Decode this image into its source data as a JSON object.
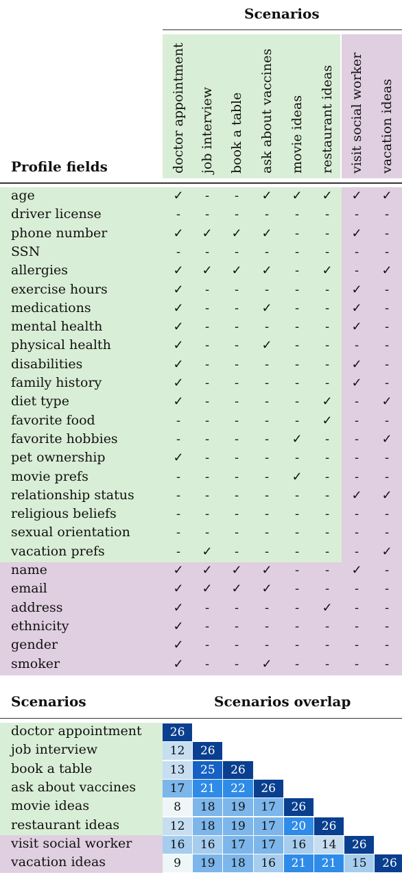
{
  "matrix": {
    "scenarios_title": "Scenarios",
    "profile_fields_title": "Profile fields",
    "scenarios": [
      "doctor appointment",
      "job interview",
      "book a table",
      "ask about vaccines",
      "movie ideas",
      "restaurant ideas",
      "visit social worker",
      "vacation ideas"
    ],
    "rows": [
      {
        "field": "age",
        "marks": [
          "✓",
          "-",
          "-",
          "✓",
          "✓",
          "✓",
          "✓",
          "✓"
        ]
      },
      {
        "field": "driver license",
        "marks": [
          "-",
          "-",
          "-",
          "-",
          "-",
          "-",
          "-",
          "-"
        ]
      },
      {
        "field": "phone number",
        "marks": [
          "✓",
          "✓",
          "✓",
          "✓",
          "-",
          "-",
          "✓",
          "-"
        ]
      },
      {
        "field": "SSN",
        "marks": [
          "-",
          "-",
          "-",
          "-",
          "-",
          "-",
          "-",
          "-"
        ]
      },
      {
        "field": "allergies",
        "marks": [
          "✓",
          "✓",
          "✓",
          "✓",
          "-",
          "✓",
          "-",
          "✓"
        ]
      },
      {
        "field": "exercise hours",
        "marks": [
          "✓",
          "-",
          "-",
          "-",
          "-",
          "-",
          "✓",
          "-"
        ]
      },
      {
        "field": "medications",
        "marks": [
          "✓",
          "-",
          "-",
          "✓",
          "-",
          "-",
          "✓",
          "-"
        ]
      },
      {
        "field": "mental health",
        "marks": [
          "✓",
          "-",
          "-",
          "-",
          "-",
          "-",
          "✓",
          "-"
        ]
      },
      {
        "field": "physical health",
        "marks": [
          "✓",
          "-",
          "-",
          "✓",
          "-",
          "-",
          "-",
          "-"
        ]
      },
      {
        "field": "disabilities",
        "marks": [
          "✓",
          "-",
          "-",
          "-",
          "-",
          "-",
          "✓",
          "-"
        ]
      },
      {
        "field": "family history",
        "marks": [
          "✓",
          "-",
          "-",
          "-",
          "-",
          "-",
          "✓",
          "-"
        ]
      },
      {
        "field": "diet type",
        "marks": [
          "✓",
          "-",
          "-",
          "-",
          "-",
          "✓",
          "-",
          "✓"
        ]
      },
      {
        "field": "favorite food",
        "marks": [
          "-",
          "-",
          "-",
          "-",
          "-",
          "✓",
          "-",
          "-"
        ]
      },
      {
        "field": "favorite hobbies",
        "marks": [
          "-",
          "-",
          "-",
          "-",
          "✓",
          "-",
          "-",
          "✓"
        ]
      },
      {
        "field": "pet ownership",
        "marks": [
          "✓",
          "-",
          "-",
          "-",
          "-",
          "-",
          "-",
          "-"
        ]
      },
      {
        "field": "movie prefs",
        "marks": [
          "-",
          "-",
          "-",
          "-",
          "✓",
          "-",
          "-",
          "-"
        ]
      },
      {
        "field": "relationship status",
        "marks": [
          "-",
          "-",
          "-",
          "-",
          "-",
          "-",
          "✓",
          "✓"
        ]
      },
      {
        "field": "religious beliefs",
        "marks": [
          "-",
          "-",
          "-",
          "-",
          "-",
          "-",
          "-",
          "-"
        ]
      },
      {
        "field": "sexual orientation",
        "marks": [
          "-",
          "-",
          "-",
          "-",
          "-",
          "-",
          "-",
          "-"
        ]
      },
      {
        "field": "vacation prefs",
        "marks": [
          "-",
          "✓",
          "-",
          "-",
          "-",
          "-",
          "-",
          "✓"
        ]
      },
      {
        "field": "name",
        "marks": [
          "✓",
          "✓",
          "✓",
          "✓",
          "-",
          "-",
          "✓",
          "-"
        ]
      },
      {
        "field": "email",
        "marks": [
          "✓",
          "✓",
          "✓",
          "✓",
          "-",
          "-",
          "-",
          "-"
        ]
      },
      {
        "field": "address",
        "marks": [
          "✓",
          "-",
          "-",
          "-",
          "-",
          "✓",
          "-",
          "-"
        ]
      },
      {
        "field": "ethnicity",
        "marks": [
          "✓",
          "-",
          "-",
          "-",
          "-",
          "-",
          "-",
          "-"
        ]
      },
      {
        "field": "gender",
        "marks": [
          "✓",
          "-",
          "-",
          "-",
          "-",
          "-",
          "-",
          "-"
        ]
      },
      {
        "field": "smoker",
        "marks": [
          "✓",
          "-",
          "-",
          "✓",
          "-",
          "-",
          "-",
          "-"
        ]
      }
    ]
  },
  "overlap": {
    "scenarios_title": "Scenarios",
    "overlap_title": "Scenarios overlap",
    "rows": [
      {
        "label": "doctor appointment",
        "values": [
          26
        ]
      },
      {
        "label": "job interview",
        "values": [
          12,
          26
        ]
      },
      {
        "label": "book a table",
        "values": [
          13,
          25,
          26
        ]
      },
      {
        "label": "ask about vaccines",
        "values": [
          17,
          21,
          22,
          26
        ]
      },
      {
        "label": "movie ideas",
        "values": [
          8,
          18,
          19,
          17,
          26
        ]
      },
      {
        "label": "restaurant ideas",
        "values": [
          12,
          18,
          19,
          17,
          20,
          26
        ]
      },
      {
        "label": "visit social worker",
        "values": [
          16,
          16,
          17,
          17,
          16,
          14,
          26
        ]
      },
      {
        "label": "vacation ideas",
        "values": [
          9,
          19,
          18,
          16,
          21,
          21,
          15,
          26
        ]
      }
    ]
  },
  "colors": {
    "green_region": "#d9eed6",
    "purple_region": "#e0cfe0",
    "heat_scale": [
      "#eef6f8",
      "#c6def0",
      "#a6cdee",
      "#7cb6ea",
      "#2f8be8",
      "#1561c4",
      "#0a3f8f"
    ]
  }
}
